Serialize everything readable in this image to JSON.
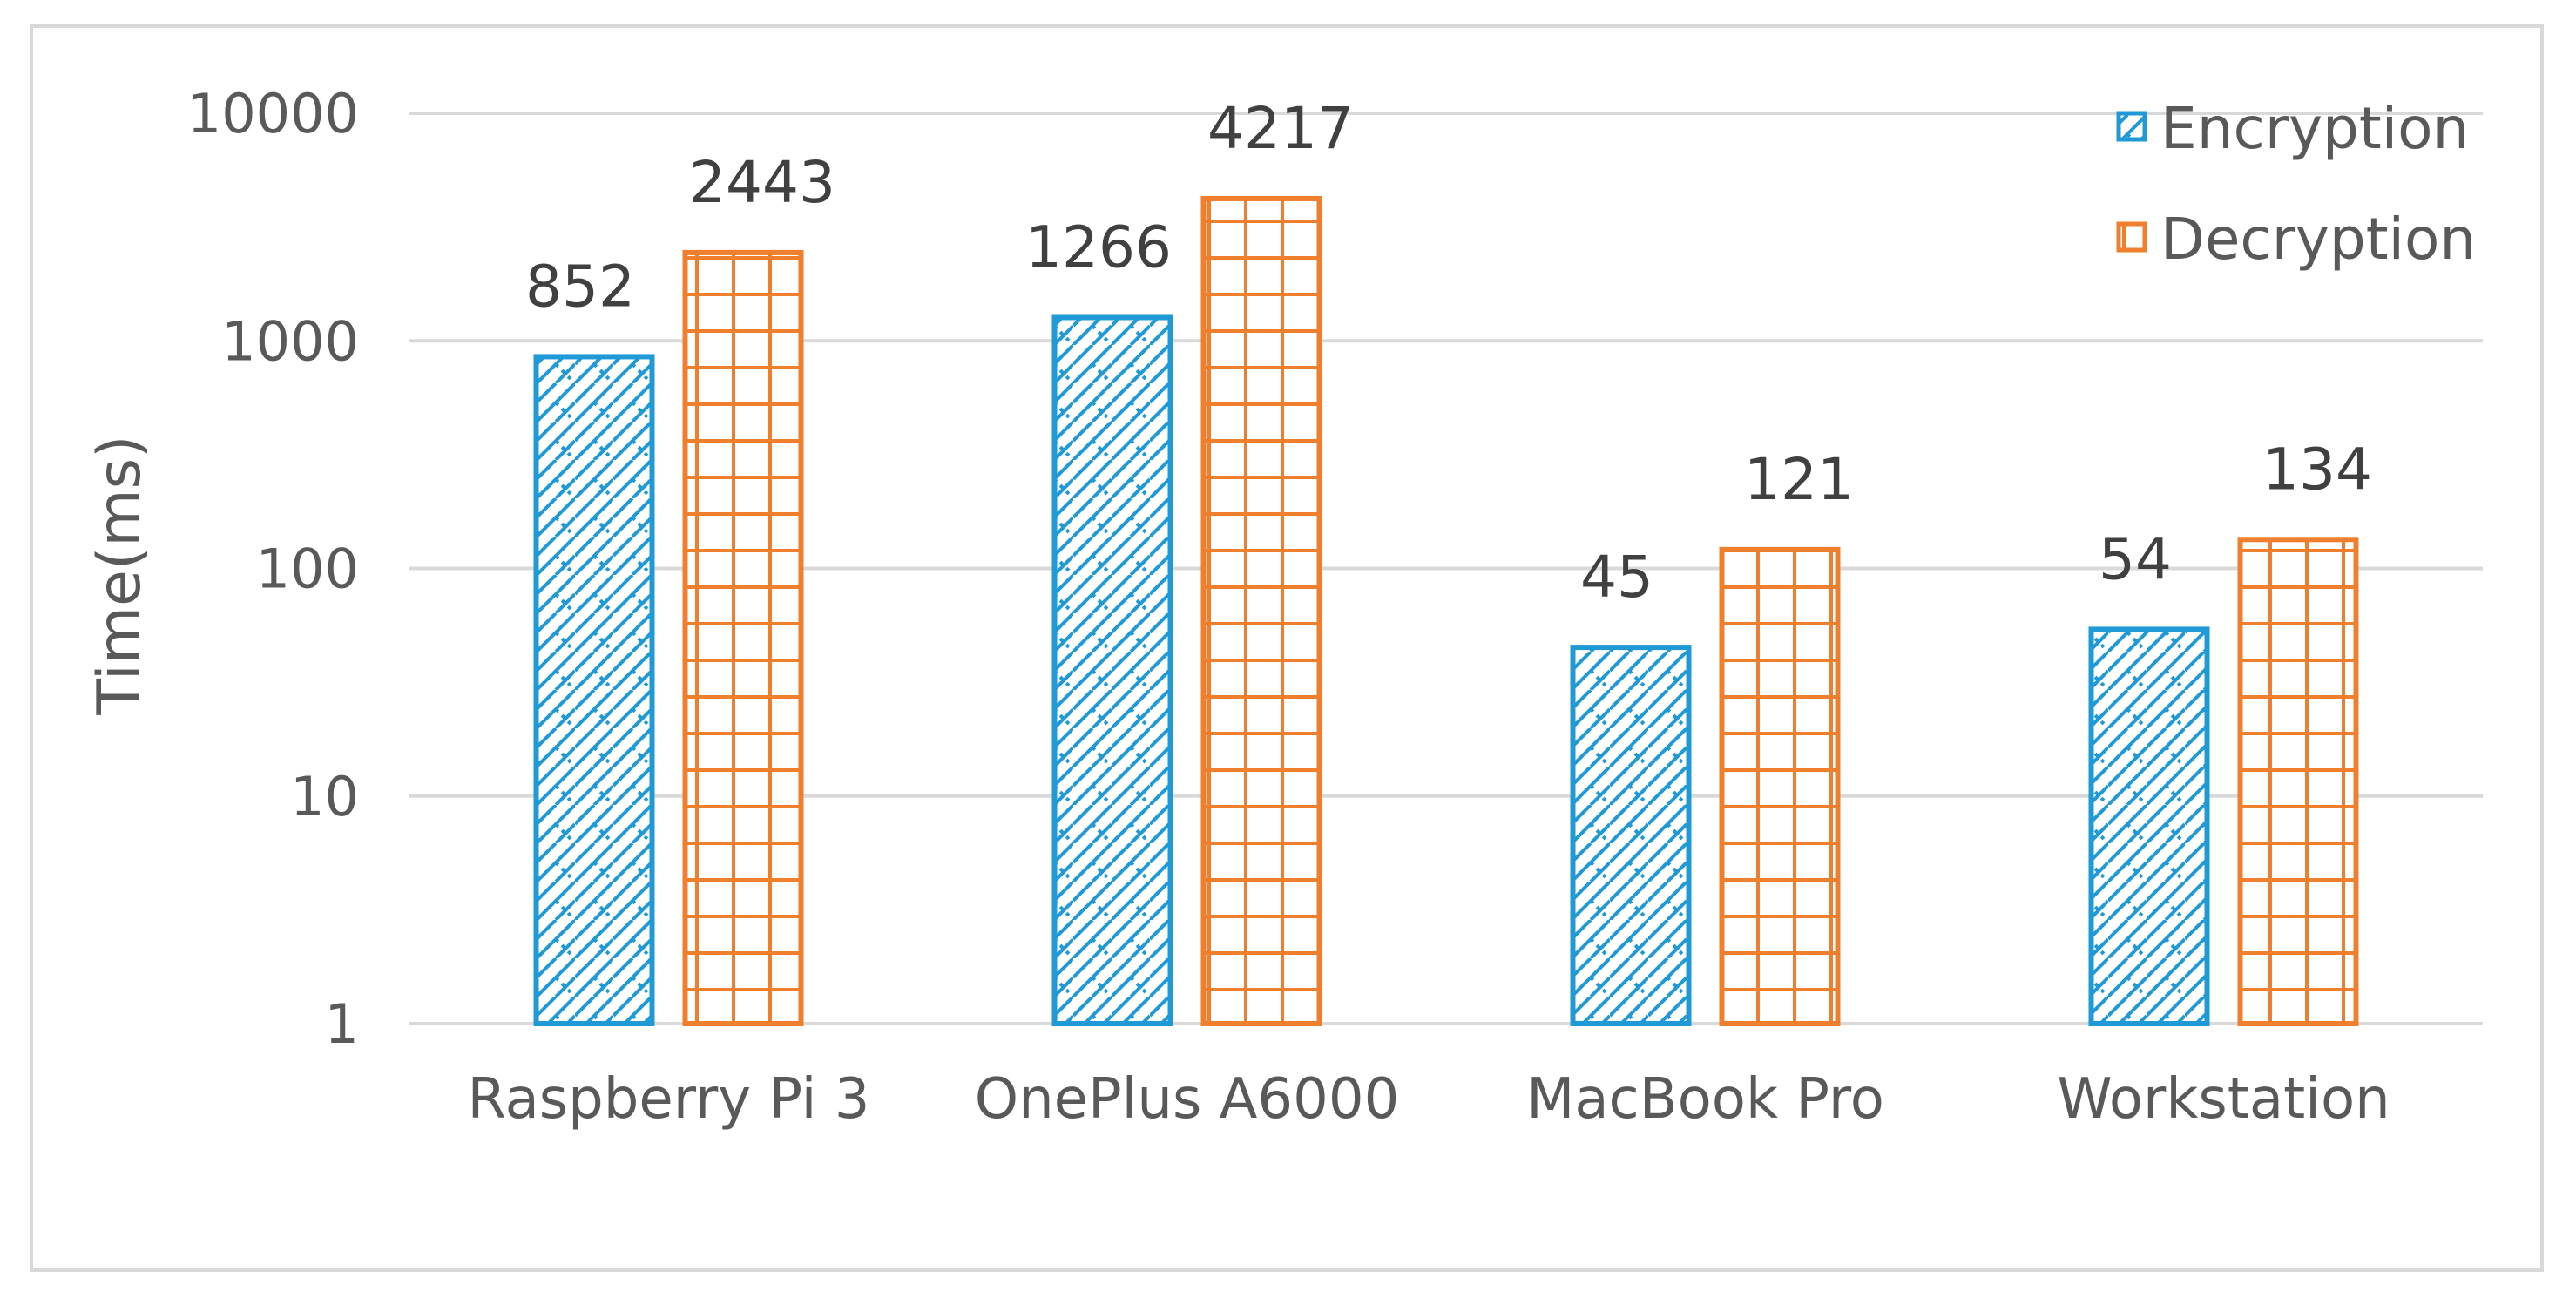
{
  "chart_data": {
    "type": "bar",
    "title": "",
    "xlabel": "",
    "ylabel": "Time(ms)",
    "yscale": "log",
    "ylim": [
      1,
      10000
    ],
    "yticks": [
      "1",
      "10",
      "100",
      "1000",
      "10000"
    ],
    "grid": true,
    "legend_position": "top-right",
    "categories": [
      "Raspberry Pi 3",
      "OnePlus A6000",
      "MacBook Pro",
      "Workstation"
    ],
    "series": [
      {
        "name": "Encryption",
        "values": [
          852,
          1266,
          45,
          54
        ],
        "labels": [
          "852",
          "1266",
          "45",
          "54"
        ],
        "color": "#1F9AD6",
        "pattern": "diagonal-brick"
      },
      {
        "name": "Decryption",
        "values": [
          2443,
          4217,
          121,
          134
        ],
        "labels": [
          "2443",
          "4217",
          "121",
          "134"
        ],
        "color": "#F07F2D",
        "pattern": "grid"
      }
    ]
  }
}
